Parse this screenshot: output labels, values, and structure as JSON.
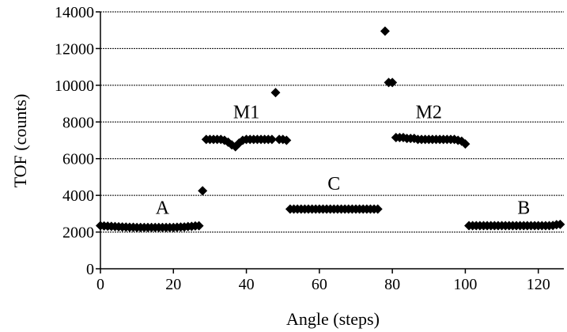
{
  "chart_data": {
    "type": "scatter",
    "title": "",
    "xlabel": "Angle (steps)",
    "ylabel": "TOF (counts)",
    "xlim": [
      0,
      127
    ],
    "ylim": [
      0,
      14000
    ],
    "x_ticks": [
      0,
      20,
      40,
      60,
      80,
      100,
      120
    ],
    "y_ticks": [
      0,
      2000,
      4000,
      6000,
      8000,
      10000,
      12000,
      14000
    ],
    "grid": "horizontal",
    "legend": "none",
    "marker": "diamond",
    "marker_color": "#000000",
    "annotations": [
      {
        "text": "A",
        "x": 17,
        "y": 3000
      },
      {
        "text": "M1",
        "x": 40,
        "y": 8200
      },
      {
        "text": "C",
        "x": 64,
        "y": 4300
      },
      {
        "text": "M2",
        "x": 90,
        "y": 8200
      },
      {
        "text": "B",
        "x": 116,
        "y": 3000
      }
    ],
    "series": [
      {
        "points": [
          [
            0,
            2350
          ],
          [
            1,
            2330
          ],
          [
            2,
            2320
          ],
          [
            3,
            2310
          ],
          [
            4,
            2300
          ],
          [
            5,
            2290
          ],
          [
            6,
            2280
          ],
          [
            7,
            2270
          ],
          [
            8,
            2260
          ],
          [
            9,
            2260
          ],
          [
            10,
            2250
          ],
          [
            11,
            2250
          ],
          [
            12,
            2250
          ],
          [
            13,
            2250
          ],
          [
            14,
            2250
          ],
          [
            15,
            2250
          ],
          [
            16,
            2250
          ],
          [
            17,
            2250
          ],
          [
            18,
            2250
          ],
          [
            19,
            2250
          ],
          [
            20,
            2250
          ],
          [
            21,
            2260
          ],
          [
            22,
            2270
          ],
          [
            23,
            2280
          ],
          [
            24,
            2300
          ],
          [
            25,
            2310
          ],
          [
            26,
            2330
          ],
          [
            27,
            2340
          ],
          [
            28,
            4250
          ],
          [
            29,
            7050
          ],
          [
            30,
            7050
          ],
          [
            31,
            7050
          ],
          [
            32,
            7050
          ],
          [
            33,
            7050
          ],
          [
            34,
            7000
          ],
          [
            35,
            6900
          ],
          [
            36,
            6750
          ],
          [
            37,
            6650
          ],
          [
            38,
            6850
          ],
          [
            39,
            7000
          ],
          [
            40,
            7050
          ],
          [
            41,
            7050
          ],
          [
            42,
            7050
          ],
          [
            43,
            7050
          ],
          [
            44,
            7050
          ],
          [
            45,
            7050
          ],
          [
            46,
            7050
          ],
          [
            47,
            7050
          ],
          [
            48,
            9600
          ],
          [
            49,
            7050
          ],
          [
            50,
            7050
          ],
          [
            51,
            7000
          ],
          [
            52,
            3250
          ],
          [
            53,
            3250
          ],
          [
            54,
            3250
          ],
          [
            55,
            3250
          ],
          [
            56,
            3250
          ],
          [
            57,
            3250
          ],
          [
            58,
            3250
          ],
          [
            59,
            3250
          ],
          [
            60,
            3250
          ],
          [
            61,
            3250
          ],
          [
            62,
            3250
          ],
          [
            63,
            3250
          ],
          [
            64,
            3250
          ],
          [
            65,
            3250
          ],
          [
            66,
            3250
          ],
          [
            67,
            3250
          ],
          [
            68,
            3250
          ],
          [
            69,
            3250
          ],
          [
            70,
            3250
          ],
          [
            71,
            3250
          ],
          [
            72,
            3250
          ],
          [
            73,
            3250
          ],
          [
            74,
            3250
          ],
          [
            75,
            3250
          ],
          [
            76,
            3250
          ],
          [
            78,
            12950
          ],
          [
            79,
            10150
          ],
          [
            80,
            10150
          ],
          [
            81,
            7150
          ],
          [
            82,
            7150
          ],
          [
            83,
            7150
          ],
          [
            84,
            7100
          ],
          [
            85,
            7100
          ],
          [
            86,
            7100
          ],
          [
            87,
            7050
          ],
          [
            88,
            7050
          ],
          [
            89,
            7050
          ],
          [
            90,
            7050
          ],
          [
            91,
            7050
          ],
          [
            92,
            7050
          ],
          [
            93,
            7050
          ],
          [
            94,
            7050
          ],
          [
            95,
            7050
          ],
          [
            96,
            7050
          ],
          [
            97,
            7050
          ],
          [
            98,
            7000
          ],
          [
            99,
            6950
          ],
          [
            100,
            6800
          ],
          [
            101,
            2350
          ],
          [
            102,
            2350
          ],
          [
            103,
            2350
          ],
          [
            104,
            2350
          ],
          [
            105,
            2350
          ],
          [
            106,
            2350
          ],
          [
            107,
            2350
          ],
          [
            108,
            2350
          ],
          [
            109,
            2350
          ],
          [
            110,
            2350
          ],
          [
            111,
            2350
          ],
          [
            112,
            2350
          ],
          [
            113,
            2350
          ],
          [
            114,
            2350
          ],
          [
            115,
            2350
          ],
          [
            116,
            2350
          ],
          [
            117,
            2350
          ],
          [
            118,
            2350
          ],
          [
            119,
            2350
          ],
          [
            120,
            2350
          ],
          [
            121,
            2350
          ],
          [
            122,
            2350
          ],
          [
            123,
            2350
          ],
          [
            124,
            2360
          ],
          [
            125,
            2400
          ],
          [
            126,
            2420
          ]
        ]
      }
    ]
  }
}
